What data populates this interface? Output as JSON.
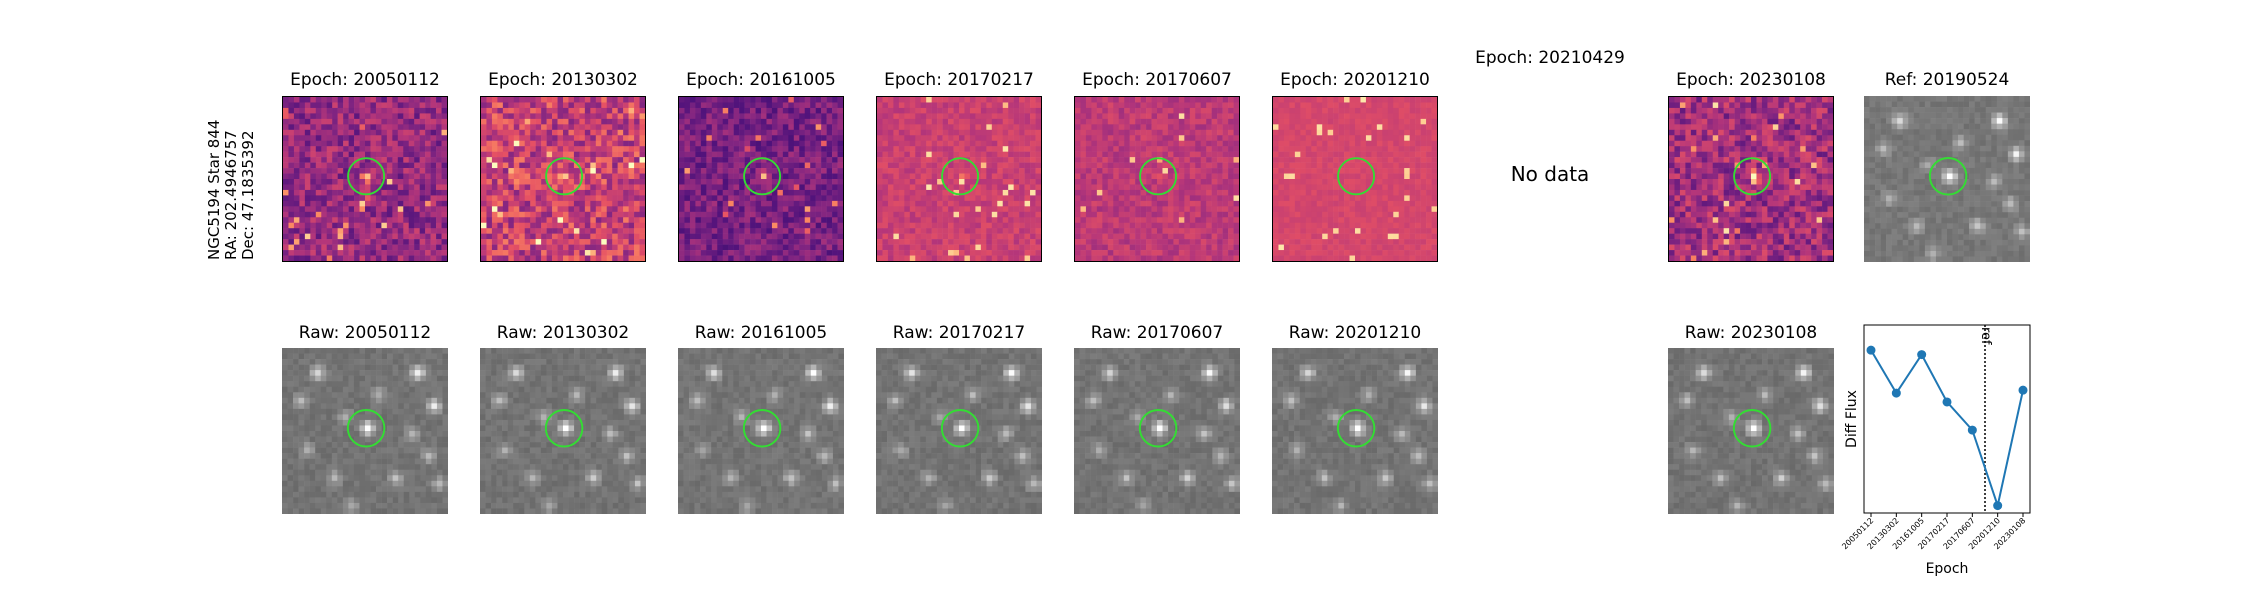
{
  "figure": {
    "star_label_lines": [
      "NGC5194 Star 844",
      "RA: 202.4946757",
      "Dec: 47.1835392"
    ],
    "no_data_text": "No data"
  },
  "diff_panels": [
    {
      "title": "Epoch: 20050112",
      "has_image": true
    },
    {
      "title": "Epoch: 20130302",
      "has_image": true
    },
    {
      "title": "Epoch: 20161005",
      "has_image": true
    },
    {
      "title": "Epoch: 20170217",
      "has_image": true
    },
    {
      "title": "Epoch: 20170607",
      "has_image": true
    },
    {
      "title": "Epoch: 20201210",
      "has_image": true
    },
    {
      "title": "Epoch: 20210429",
      "has_image": false
    },
    {
      "title": "Epoch: 20230108",
      "has_image": true
    },
    {
      "title": "Ref: 20190524",
      "has_image": true
    }
  ],
  "raw_panels": [
    {
      "title": "Raw: 20050112"
    },
    {
      "title": "Raw: 20130302"
    },
    {
      "title": "Raw: 20161005"
    },
    {
      "title": "Raw: 20170217"
    },
    {
      "title": "Raw: 20170607"
    },
    {
      "title": "Raw: 20201210"
    },
    {
      "title": "Raw: 20230108"
    }
  ],
  "colors": {
    "circle": "#33dd33",
    "line": "#1f77b4",
    "diff_cmap": "magma",
    "raw_cmap": "gray"
  },
  "chart_data": {
    "type": "line",
    "title": "",
    "xlabel": "Epoch",
    "ylabel": "Diff Flux",
    "x": [
      "20050112",
      "20130302",
      "20161005",
      "20170217",
      "20170607",
      "20201210",
      "20230108"
    ],
    "values": [
      0.95,
      0.66,
      0.92,
      0.6,
      0.41,
      -0.1,
      0.68
    ],
    "ylim": [
      -0.15,
      1.12
    ],
    "ref_line": {
      "label": "ref",
      "after_index": 4,
      "style": "dotted"
    },
    "grid": false,
    "legend": "none"
  }
}
